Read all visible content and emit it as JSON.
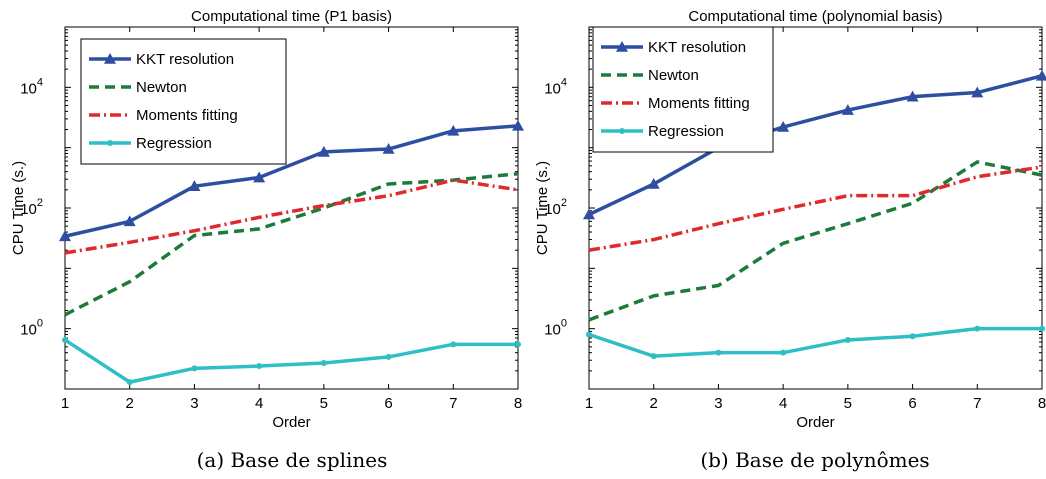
{
  "chart_data": [
    {
      "type": "line",
      "title": "Computational time (P1 basis)",
      "xlabel": "Order",
      "ylabel": "CPU Time (s.)",
      "caption": "(a)  Base de splines",
      "yscale": "log",
      "xlim": [
        1,
        8
      ],
      "ylim": [
        0.1,
        100000
      ],
      "xticks": [
        1,
        2,
        3,
        4,
        5,
        6,
        7,
        8
      ],
      "yticks": [
        {
          "value": 1,
          "label": "10",
          "exp": "0"
        },
        {
          "value": 100,
          "label": "10",
          "exp": "2"
        },
        {
          "value": 10000,
          "label": "10",
          "exp": "4"
        }
      ],
      "legend_position": "top-left",
      "x": [
        1,
        2,
        3,
        4,
        5,
        6,
        7,
        8
      ],
      "series": [
        {
          "name": "KKT resolution",
          "color": "#2e4ea2",
          "dash": "solid",
          "marker": "triangle",
          "values": [
            34,
            60,
            230,
            320,
            850,
            950,
            1900,
            2300
          ]
        },
        {
          "name": "Newton",
          "color": "#1d7a3a",
          "dash": "dashed",
          "marker": "none",
          "values": [
            1.7,
            6,
            35,
            45,
            100,
            250,
            290,
            370
          ]
        },
        {
          "name": "Moments fitting",
          "color": "#e0282d",
          "dash": "dashdot",
          "marker": "none",
          "values": [
            18,
            27,
            42,
            70,
            110,
            160,
            290,
            200
          ]
        },
        {
          "name": "Regression",
          "color": "#2ebfc4",
          "dash": "solid",
          "marker": "dot",
          "values": [
            0.65,
            0.13,
            0.22,
            0.24,
            0.27,
            0.34,
            0.55,
            0.55
          ]
        }
      ]
    },
    {
      "type": "line",
      "title": "Computational time (polynomial basis)",
      "xlabel": "Order",
      "ylabel": "CPU Time (s.)",
      "caption": "(b)  Base de polynômes",
      "yscale": "log",
      "xlim": [
        1,
        8
      ],
      "ylim": [
        0.1,
        100000
      ],
      "xticks": [
        1,
        2,
        3,
        4,
        5,
        6,
        7,
        8
      ],
      "yticks": [
        {
          "value": 1,
          "label": "10",
          "exp": "0"
        },
        {
          "value": 100,
          "label": "10",
          "exp": "2"
        },
        {
          "value": 10000,
          "label": "10",
          "exp": "4"
        }
      ],
      "legend_position": "top-left",
      "x": [
        1,
        2,
        3,
        4,
        5,
        6,
        7,
        8
      ],
      "series": [
        {
          "name": "KKT resolution",
          "color": "#2e4ea2",
          "dash": "solid",
          "marker": "triangle",
          "values": [
            78,
            250,
            1000,
            2200,
            4200,
            7000,
            8200,
            15500
          ]
        },
        {
          "name": "Newton",
          "color": "#1d7a3a",
          "dash": "dashed",
          "marker": "none",
          "values": [
            1.4,
            3.5,
            5.2,
            26,
            55,
            120,
            580,
            350
          ]
        },
        {
          "name": "Moments fitting",
          "color": "#e0282d",
          "dash": "dashdot",
          "marker": "none",
          "values": [
            20,
            30,
            55,
            95,
            160,
            160,
            330,
            480
          ]
        },
        {
          "name": "Regression",
          "color": "#2ebfc4",
          "dash": "solid",
          "marker": "dot",
          "values": [
            0.8,
            0.35,
            0.4,
            0.4,
            0.65,
            0.75,
            1.0,
            1.0
          ]
        }
      ]
    }
  ]
}
